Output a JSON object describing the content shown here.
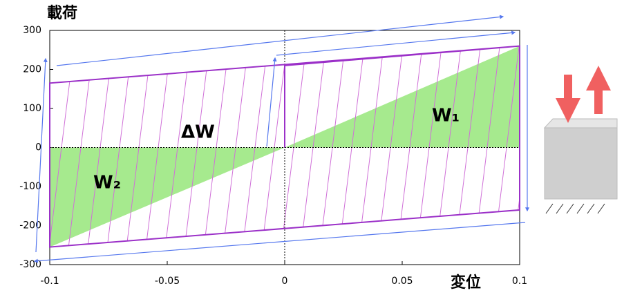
{
  "chart_data": {
    "type": "line",
    "y_label": "載荷",
    "x_label": "変位",
    "x": [
      0,
      0,
      0.1,
      0.1,
      -0.1,
      -0.1,
      0.1
    ],
    "series": [
      {
        "color": "#9b30c8",
        "values": [
          0,
          210,
          260,
          -160,
          -255,
          165,
          260
        ]
      }
    ],
    "xlim": [
      -0.1,
      0.1
    ],
    "xticks": [
      -0.1,
      -0.05,
      0,
      0.05,
      0.1
    ],
    "ylim": [
      -300,
      300
    ],
    "yticks": [
      -300,
      -200,
      -100,
      0,
      100,
      200,
      300
    ],
    "zero_lines": true,
    "area_color": "#a6ea8e",
    "hatch_color": "#d070d8",
    "annotations": [
      "W₁",
      "ΔW",
      "W₂"
    ]
  }
}
